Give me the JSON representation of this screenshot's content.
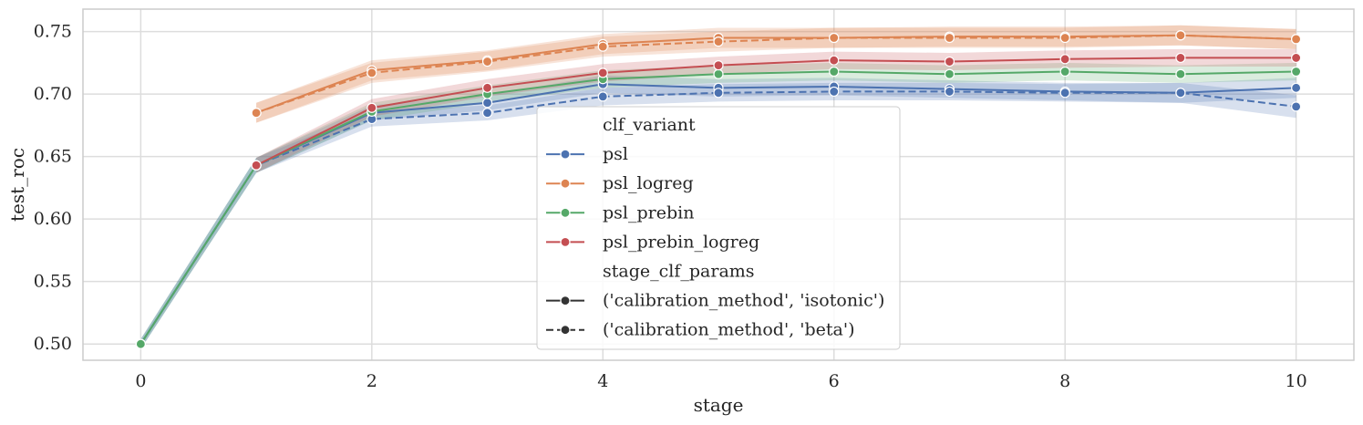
{
  "chart_data": {
    "type": "line",
    "xlabel": "stage",
    "ylabel": "test_roc",
    "xlim": [
      -0.5,
      10.5
    ],
    "ylim": [
      0.487,
      0.768
    ],
    "xticks": [
      0,
      2,
      4,
      6,
      8,
      10
    ],
    "xtick_labels": [
      "0",
      "2",
      "4",
      "6",
      "8",
      "10"
    ],
    "yticks": [
      0.5,
      0.55,
      0.6,
      0.65,
      0.7,
      0.75
    ],
    "ytick_labels": [
      "0.50",
      "0.55",
      "0.60",
      "0.65",
      "0.70",
      "0.75"
    ],
    "grid": true,
    "legend_placement": "center",
    "legend": {
      "hue_title": "clf_variant",
      "style_title": "stage_clf_params"
    },
    "variants": [
      {
        "name": "psl",
        "color": "#4c72b0"
      },
      {
        "name": "psl_logreg",
        "color": "#dd8452"
      },
      {
        "name": "psl_prebin",
        "color": "#55a868"
      },
      {
        "name": "psl_prebin_logreg",
        "color": "#c44e52"
      }
    ],
    "styles": [
      {
        "name": "('calibration_method', 'isotonic')",
        "dash": "solid"
      },
      {
        "name": "('calibration_method', 'beta')",
        "dash": "dashed"
      }
    ],
    "series": [
      {
        "variant": "psl",
        "style": "solid",
        "x": [
          0,
          1,
          2,
          3,
          4,
          5,
          6,
          7,
          8,
          9,
          10
        ],
        "y": [
          0.5,
          0.643,
          0.685,
          0.693,
          0.708,
          0.705,
          0.706,
          0.704,
          0.702,
          0.701,
          0.705
        ],
        "band": [
          0.004,
          0.006,
          0.006,
          0.006,
          0.007,
          0.007,
          0.007,
          0.007,
          0.007,
          0.008,
          0.008
        ]
      },
      {
        "variant": "psl",
        "style": "dashed",
        "x": [
          0,
          1,
          2,
          3,
          4,
          5,
          6,
          7,
          8,
          9,
          10
        ],
        "y": [
          0.5,
          0.643,
          0.68,
          0.685,
          0.698,
          0.701,
          0.702,
          0.702,
          0.701,
          0.701,
          0.69
        ],
        "band": [
          0.004,
          0.006,
          0.006,
          0.006,
          0.007,
          0.007,
          0.007,
          0.007,
          0.007,
          0.008,
          0.009
        ]
      },
      {
        "variant": "psl_logreg",
        "style": "solid",
        "x": [
          1,
          2,
          3,
          4,
          5,
          6,
          7,
          8,
          9,
          10
        ],
        "y": [
          0.685,
          0.719,
          0.727,
          0.74,
          0.745,
          0.745,
          0.746,
          0.746,
          0.747,
          0.744
        ],
        "band": [
          0.008,
          0.008,
          0.008,
          0.008,
          0.008,
          0.008,
          0.008,
          0.008,
          0.008,
          0.008
        ]
      },
      {
        "variant": "psl_logreg",
        "style": "dashed",
        "x": [
          1,
          2,
          3,
          4,
          5,
          6,
          7,
          8,
          9,
          10
        ],
        "y": [
          0.685,
          0.717,
          0.726,
          0.738,
          0.742,
          0.745,
          0.745,
          0.745,
          0.747,
          0.744
        ],
        "band": [
          0.008,
          0.008,
          0.008,
          0.008,
          0.008,
          0.008,
          0.008,
          0.008,
          0.008,
          0.008
        ]
      },
      {
        "variant": "psl_prebin",
        "style": "solid",
        "x": [
          0,
          1,
          2,
          3,
          4,
          5,
          6,
          7,
          8,
          9,
          10
        ],
        "y": [
          0.5,
          0.643,
          0.686,
          0.7,
          0.712,
          0.716,
          0.718,
          0.716,
          0.718,
          0.716,
          0.718
        ],
        "band": [
          0.004,
          0.006,
          0.007,
          0.007,
          0.007,
          0.007,
          0.007,
          0.007,
          0.007,
          0.007,
          0.007
        ]
      },
      {
        "variant": "psl_prebin_logreg",
        "style": "solid",
        "x": [
          1,
          2,
          3,
          4,
          5,
          6,
          7,
          8,
          9,
          10
        ],
        "y": [
          0.643,
          0.689,
          0.705,
          0.717,
          0.723,
          0.727,
          0.726,
          0.728,
          0.729,
          0.729
        ],
        "band": [
          0.006,
          0.007,
          0.007,
          0.007,
          0.007,
          0.007,
          0.007,
          0.007,
          0.007,
          0.007
        ]
      }
    ]
  }
}
